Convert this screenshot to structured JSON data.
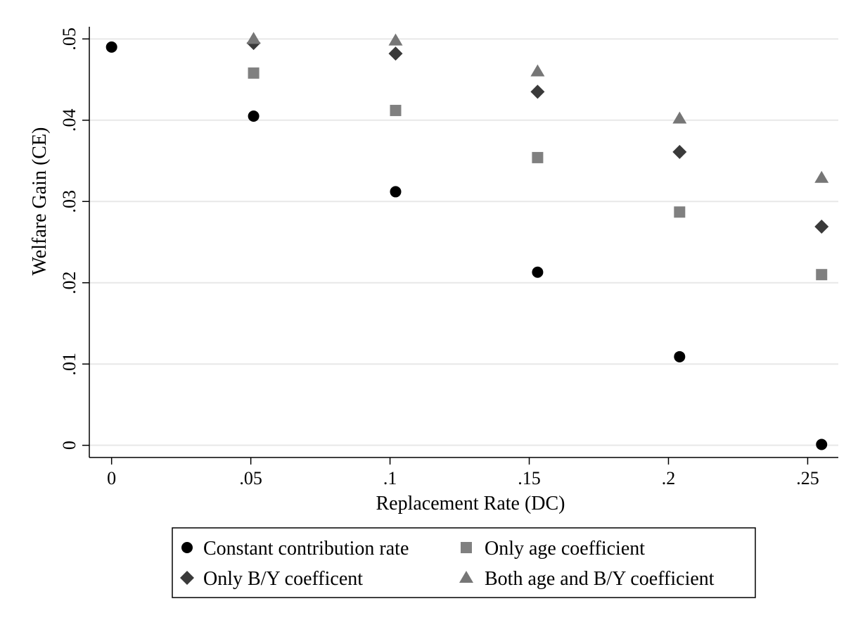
{
  "chart_data": {
    "type": "scatter",
    "title": "",
    "xlabel": "Replacement Rate (DC)",
    "ylabel": "Welfare Gain (CE)",
    "xlim": [
      -0.008,
      0.261
    ],
    "ylim": [
      -0.0015,
      0.0515
    ],
    "x_ticks": [
      0,
      0.05,
      0.1,
      0.15,
      0.2,
      0.25
    ],
    "x_tick_labels": [
      "0",
      ".05",
      ".1",
      ".15",
      ".2",
      ".25"
    ],
    "y_ticks": [
      0,
      0.01,
      0.02,
      0.03,
      0.04,
      0.05
    ],
    "y_tick_labels": [
      "0",
      ".01",
      ".02",
      ".03",
      ".04",
      ".05"
    ],
    "grid": true,
    "legend_position": "bottom",
    "series": [
      {
        "name": "Constant contribution rate",
        "marker": "circle",
        "color": "#000000",
        "points": [
          [
            0,
            0.049
          ],
          [
            0.051,
            0.0405
          ],
          [
            0.102,
            0.0312
          ],
          [
            0.153,
            0.0213
          ],
          [
            0.204,
            0.0109
          ],
          [
            0.255,
            0.0001
          ]
        ]
      },
      {
        "name": "Only age coefficient",
        "marker": "square",
        "color": "#808080",
        "points": [
          [
            0.051,
            0.0458
          ],
          [
            0.102,
            0.0412
          ],
          [
            0.153,
            0.0354
          ],
          [
            0.204,
            0.0287
          ],
          [
            0.255,
            0.021
          ]
        ]
      },
      {
        "name": "Only B/Y coefficent",
        "marker": "diamond",
        "color": "#3a3a3a",
        "points": [
          [
            0.051,
            0.0495
          ],
          [
            0.102,
            0.0482
          ],
          [
            0.153,
            0.0435
          ],
          [
            0.204,
            0.0361
          ],
          [
            0.255,
            0.0269
          ]
        ]
      },
      {
        "name": "Both age and B/Y coefficient",
        "marker": "triangle",
        "color": "#767676",
        "points": [
          [
            0.051,
            0.05
          ],
          [
            0.102,
            0.0498
          ],
          [
            0.153,
            0.046
          ],
          [
            0.204,
            0.0402
          ],
          [
            0.255,
            0.0329
          ]
        ]
      }
    ]
  }
}
